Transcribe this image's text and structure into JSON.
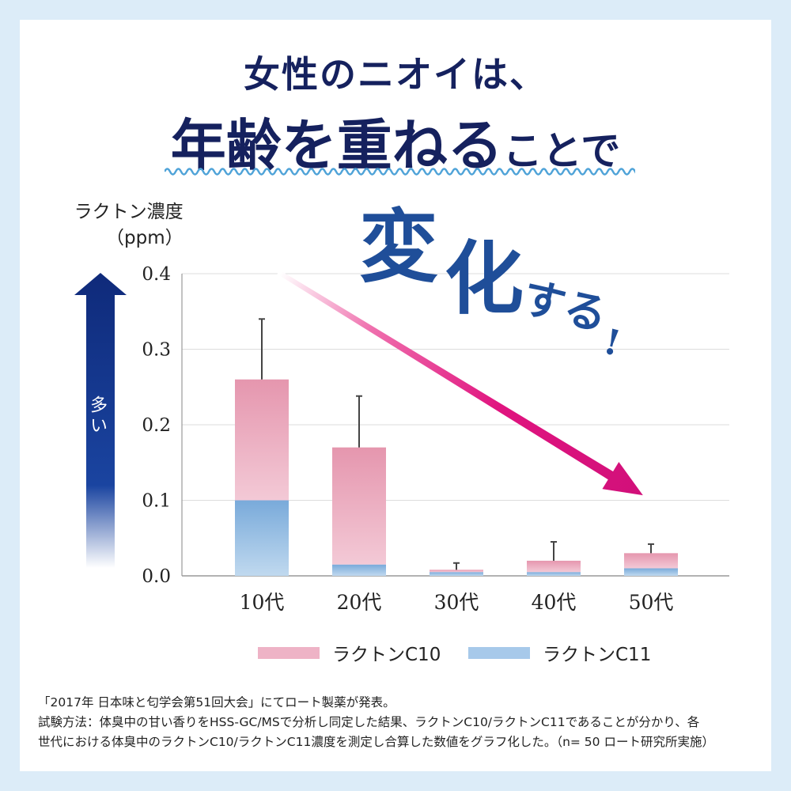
{
  "header": {
    "line1": "女性のニオイは、",
    "line2_big": "年齢を重ねる",
    "line2_small": "ことで"
  },
  "callout": {
    "part1": "変",
    "part2": "化",
    "part3": "する",
    "part4": "!"
  },
  "side_arrow_label": "多い",
  "colors": {
    "title": "#15215e",
    "c10": "#e9a3b8",
    "c11": "#86b4de",
    "trend_arrow": "#e0147f",
    "side_arrow": "#0f2d82"
  },
  "chart_data": {
    "type": "bar",
    "stacked": true,
    "ylabel": "ラクトン濃度",
    "yunit": "（ppm）",
    "ylim": [
      0,
      0.4
    ],
    "yticks": [
      "0.4",
      "0.3",
      "0.2",
      "0.1",
      "0.0"
    ],
    "categories": [
      "10代",
      "20代",
      "30代",
      "40代",
      "50代"
    ],
    "series": [
      {
        "name": "ラクトンC11",
        "values": [
          0.1,
          0.015,
          0.005,
          0.005,
          0.01
        ]
      },
      {
        "name": "ラクトンC10",
        "values": [
          0.16,
          0.155,
          0.003,
          0.015,
          0.02
        ]
      }
    ],
    "totals": [
      0.26,
      0.17,
      0.008,
      0.02,
      0.03
    ],
    "error_upper": [
      0.34,
      0.238,
      0.017,
      0.045,
      0.042
    ],
    "grid": true,
    "legend_position": "bottom"
  },
  "legend": {
    "c10": "ラクトンC10",
    "c11": "ラクトンC11"
  },
  "footnote": {
    "line1": "「2017年 日本味と匂学会第51回大会」にてロート製薬が発表。",
    "line2": "試験方法：体臭中の甘い香りをHSS-GC/MSで分析し同定した結果、ラクトンC10/ラクトンC11であることが分かり、各",
    "line3": "世代における体臭中のラクトンC10/ラクトンC11濃度を測定し合算した数値をグラフ化した。（n= 50 ロート研究所実施）"
  }
}
